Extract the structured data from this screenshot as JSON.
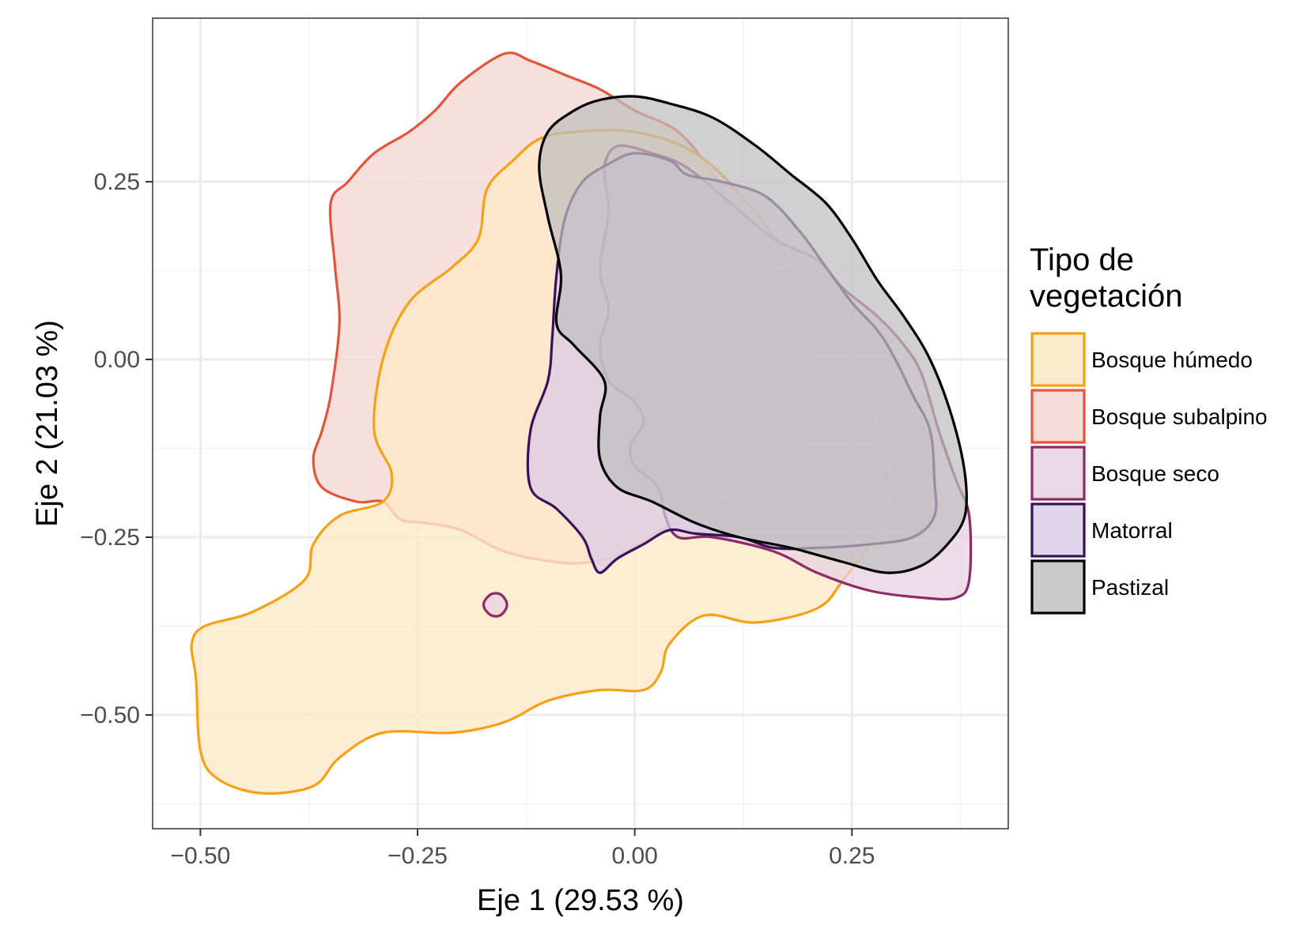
{
  "chart_data": {
    "type": "area",
    "subtype": "density-contour-polygons",
    "xlabel": "Eje 1 (29.53 %)",
    "ylabel": "Eje 2 (21.03 %)",
    "xlim": [
      -0.555,
      0.43
    ],
    "ylim": [
      -0.66,
      0.48
    ],
    "x_ticks": [
      -0.5,
      -0.25,
      0.0,
      0.25
    ],
    "x_tick_labels": [
      "−0.50",
      "−0.25",
      "0.00",
      "0.25"
    ],
    "y_ticks": [
      0.25,
      0.0,
      -0.25,
      -0.5
    ],
    "y_tick_labels": [
      "0.25",
      "0.00",
      "−0.25",
      "−0.50"
    ],
    "grid": true,
    "legend": {
      "title_lines": [
        "Tipo de",
        "vegetación"
      ],
      "position": "right"
    },
    "series": [
      {
        "name": "Bosque subalpino",
        "stroke": "#e2553c",
        "fill": "#f6dad6",
        "fill_opacity": 0.85,
        "polygons": [
          [
            [
              -0.15,
              0.43
            ],
            [
              -0.12,
              0.42
            ],
            [
              -0.08,
              0.4
            ],
            [
              -0.04,
              0.38
            ],
            [
              0.0,
              0.35
            ],
            [
              0.05,
              0.32
            ],
            [
              0.09,
              0.26
            ],
            [
              0.13,
              0.17
            ],
            [
              0.17,
              0.09
            ],
            [
              0.2,
              0.03
            ],
            [
              0.21,
              -0.04
            ],
            [
              0.2,
              -0.11
            ],
            [
              0.16,
              -0.16
            ],
            [
              0.12,
              -0.18
            ],
            [
              0.08,
              -0.2
            ],
            [
              0.03,
              -0.24
            ],
            [
              -0.01,
              -0.27
            ],
            [
              -0.05,
              -0.285
            ],
            [
              -0.09,
              -0.285
            ],
            [
              -0.15,
              -0.27
            ],
            [
              -0.2,
              -0.24
            ],
            [
              -0.24,
              -0.23
            ],
            [
              -0.27,
              -0.225
            ],
            [
              -0.29,
              -0.2
            ],
            [
              -0.32,
              -0.2
            ],
            [
              -0.36,
              -0.18
            ],
            [
              -0.37,
              -0.14
            ],
            [
              -0.36,
              -0.1
            ],
            [
              -0.35,
              -0.05
            ],
            [
              -0.34,
              0.05
            ],
            [
              -0.345,
              0.13
            ],
            [
              -0.35,
              0.22
            ],
            [
              -0.33,
              0.25
            ],
            [
              -0.3,
              0.29
            ],
            [
              -0.26,
              0.32
            ],
            [
              -0.23,
              0.35
            ],
            [
              -0.2,
              0.39
            ]
          ]
        ]
      },
      {
        "name": "Bosque húmedo",
        "stroke": "#f5a113",
        "fill": "#fde9c8",
        "fill_opacity": 0.8,
        "polygons": [
          [
            [
              -0.07,
              0.32
            ],
            [
              0.0,
              0.32
            ],
            [
              0.07,
              0.29
            ],
            [
              0.13,
              0.22
            ],
            [
              0.19,
              0.12
            ],
            [
              0.24,
              0.03
            ],
            [
              0.27,
              -0.07
            ],
            [
              0.29,
              -0.16
            ],
            [
              0.28,
              -0.24
            ],
            [
              0.24,
              -0.31
            ],
            [
              0.21,
              -0.35
            ],
            [
              0.14,
              -0.37
            ],
            [
              0.08,
              -0.36
            ],
            [
              0.04,
              -0.4
            ],
            [
              0.03,
              -0.44
            ],
            [
              0.01,
              -0.465
            ],
            [
              -0.04,
              -0.465
            ],
            [
              -0.1,
              -0.48
            ],
            [
              -0.15,
              -0.51
            ],
            [
              -0.21,
              -0.525
            ],
            [
              -0.29,
              -0.525
            ],
            [
              -0.34,
              -0.56
            ],
            [
              -0.37,
              -0.6
            ],
            [
              -0.43,
              -0.61
            ],
            [
              -0.48,
              -0.59
            ],
            [
              -0.5,
              -0.55
            ],
            [
              -0.505,
              -0.45
            ],
            [
              -0.51,
              -0.4
            ],
            [
              -0.495,
              -0.375
            ],
            [
              -0.44,
              -0.355
            ],
            [
              -0.38,
              -0.31
            ],
            [
              -0.37,
              -0.26
            ],
            [
              -0.34,
              -0.22
            ],
            [
              -0.29,
              -0.2
            ],
            [
              -0.28,
              -0.16
            ],
            [
              -0.3,
              -0.1
            ],
            [
              -0.29,
              0.0
            ],
            [
              -0.26,
              0.08
            ],
            [
              -0.21,
              0.13
            ],
            [
              -0.18,
              0.17
            ],
            [
              -0.17,
              0.24
            ],
            [
              -0.14,
              0.28
            ],
            [
              -0.11,
              0.31
            ]
          ]
        ]
      },
      {
        "name": "Bosque seco",
        "stroke": "#8e2a66",
        "fill": "#e8d2e0",
        "fill_opacity": 0.75,
        "polygons": [
          [
            [
              -0.02,
              0.3
            ],
            [
              0.02,
              0.29
            ],
            [
              0.06,
              0.27
            ],
            [
              0.11,
              0.22
            ],
            [
              0.16,
              0.17
            ],
            [
              0.21,
              0.14
            ],
            [
              0.24,
              0.1
            ],
            [
              0.28,
              0.06
            ],
            [
              0.31,
              0.02
            ],
            [
              0.33,
              -0.02
            ],
            [
              0.35,
              -0.1
            ],
            [
              0.37,
              -0.17
            ],
            [
              0.385,
              -0.22
            ],
            [
              0.385,
              -0.31
            ],
            [
              0.37,
              -0.335
            ],
            [
              0.33,
              -0.335
            ],
            [
              0.27,
              -0.325
            ],
            [
              0.21,
              -0.3
            ],
            [
              0.16,
              -0.27
            ],
            [
              0.09,
              -0.25
            ],
            [
              0.05,
              -0.25
            ],
            [
              0.035,
              -0.22
            ],
            [
              0.03,
              -0.19
            ],
            [
              0.02,
              -0.17
            ],
            [
              0.0,
              -0.15
            ],
            [
              -0.005,
              -0.12
            ],
            [
              0.01,
              -0.09
            ],
            [
              0.0,
              -0.06
            ],
            [
              -0.03,
              -0.03
            ],
            [
              -0.04,
              0.02
            ],
            [
              -0.03,
              0.07
            ],
            [
              -0.04,
              0.12
            ],
            [
              -0.035,
              0.17
            ],
            [
              -0.03,
              0.21
            ],
            [
              -0.035,
              0.27
            ]
          ],
          [
            [
              -0.165,
              -0.33
            ],
            [
              -0.155,
              -0.33
            ],
            [
              -0.148,
              -0.34
            ],
            [
              -0.148,
              -0.35
            ],
            [
              -0.155,
              -0.36
            ],
            [
              -0.165,
              -0.36
            ],
            [
              -0.173,
              -0.35
            ],
            [
              -0.173,
              -0.34
            ]
          ]
        ]
      },
      {
        "name": "Matorral",
        "stroke": "#3c0f5c",
        "fill": "#d7cbe5",
        "fill_opacity": 0.7,
        "polygons": [
          [
            [
              0.0,
              0.29
            ],
            [
              0.04,
              0.28
            ],
            [
              0.06,
              0.26
            ],
            [
              0.1,
              0.25
            ],
            [
              0.15,
              0.23
            ],
            [
              0.19,
              0.18
            ],
            [
              0.22,
              0.13
            ],
            [
              0.25,
              0.08
            ],
            [
              0.28,
              0.04
            ],
            [
              0.3,
              0.0
            ],
            [
              0.32,
              -0.05
            ],
            [
              0.34,
              -0.1
            ],
            [
              0.345,
              -0.17
            ],
            [
              0.345,
              -0.22
            ],
            [
              0.32,
              -0.25
            ],
            [
              0.27,
              -0.26
            ],
            [
              0.21,
              -0.265
            ],
            [
              0.16,
              -0.265
            ],
            [
              0.12,
              -0.25
            ],
            [
              0.07,
              -0.245
            ],
            [
              0.04,
              -0.24
            ],
            [
              0.01,
              -0.26
            ],
            [
              -0.02,
              -0.28
            ],
            [
              -0.04,
              -0.3
            ],
            [
              -0.05,
              -0.28
            ],
            [
              -0.06,
              -0.25
            ],
            [
              -0.09,
              -0.21
            ],
            [
              -0.12,
              -0.18
            ],
            [
              -0.12,
              -0.1
            ],
            [
              -0.1,
              -0.03
            ],
            [
              -0.095,
              0.03
            ],
            [
              -0.09,
              0.12
            ],
            [
              -0.08,
              0.2
            ],
            [
              -0.06,
              0.25
            ],
            [
              -0.03,
              0.275
            ]
          ]
        ]
      },
      {
        "name": "Pastizal",
        "stroke": "#000000",
        "fill": "#bebebe",
        "fill_opacity": 0.72,
        "polygons": [
          [
            [
              0.0,
              0.37
            ],
            [
              0.04,
              0.36
            ],
            [
              0.09,
              0.34
            ],
            [
              0.14,
              0.3
            ],
            [
              0.18,
              0.26
            ],
            [
              0.22,
              0.22
            ],
            [
              0.25,
              0.17
            ],
            [
              0.28,
              0.11
            ],
            [
              0.31,
              0.06
            ],
            [
              0.34,
              0.0
            ],
            [
              0.365,
              -0.08
            ],
            [
              0.38,
              -0.16
            ],
            [
              0.38,
              -0.22
            ],
            [
              0.36,
              -0.26
            ],
            [
              0.33,
              -0.29
            ],
            [
              0.29,
              -0.3
            ],
            [
              0.24,
              -0.285
            ],
            [
              0.18,
              -0.265
            ],
            [
              0.12,
              -0.25
            ],
            [
              0.07,
              -0.23
            ],
            [
              0.02,
              -0.2
            ],
            [
              -0.02,
              -0.18
            ],
            [
              -0.04,
              -0.14
            ],
            [
              -0.04,
              -0.08
            ],
            [
              -0.035,
              -0.03
            ],
            [
              -0.07,
              0.02
            ],
            [
              -0.09,
              0.05
            ],
            [
              -0.085,
              0.12
            ],
            [
              -0.1,
              0.2
            ],
            [
              -0.11,
              0.27
            ],
            [
              -0.1,
              0.32
            ],
            [
              -0.07,
              0.35
            ],
            [
              -0.04,
              0.365
            ]
          ]
        ]
      }
    ]
  }
}
